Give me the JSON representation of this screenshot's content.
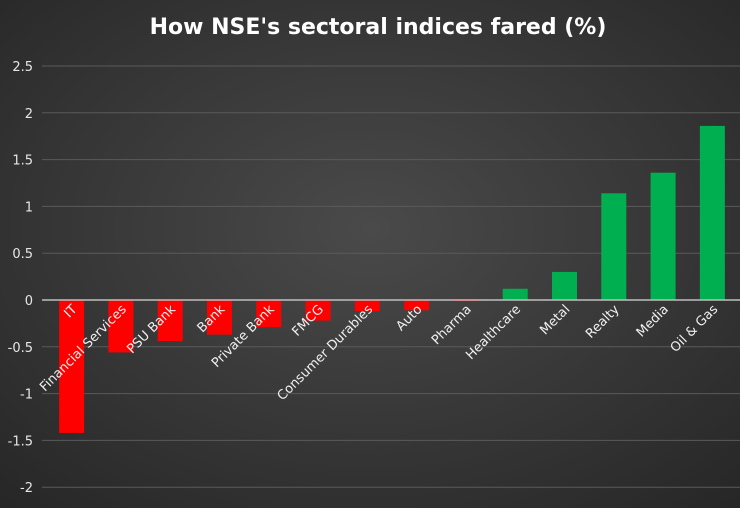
{
  "chart_data": {
    "type": "bar",
    "title": "How NSE's sectoral indices fared (%)",
    "xlabel": "",
    "ylabel": "",
    "ylim": [
      -2,
      2.5
    ],
    "yticks": [
      -2,
      -1.5,
      -1,
      -0.5,
      0,
      0.5,
      1,
      1.5,
      2,
      2.5
    ],
    "ytick_labels": [
      "-2",
      "-1.5",
      "-1",
      "-0.5",
      "0",
      "0.5",
      "1",
      "1.5",
      "2",
      "2.5"
    ],
    "grid": true,
    "legend": "none",
    "categories": [
      "IT",
      "Financial Services",
      "PSU Bank",
      "Bank",
      "Private Bank",
      "FMCG",
      "Consumer Durables",
      "Auto",
      "Pharma",
      "Healthcare",
      "Metal",
      "Realty",
      "Media",
      "Oil & Gas"
    ],
    "values": [
      -1.42,
      -0.56,
      -0.44,
      -0.37,
      -0.29,
      -0.22,
      -0.12,
      -0.11,
      -0.01,
      0.12,
      0.3,
      1.14,
      1.36,
      1.86
    ],
    "colors": {
      "negative": "#ff0000",
      "positive": "#00b050",
      "background": "#3a3a3a",
      "text": "#ffffff",
      "grid": "#5a5a5a",
      "axis": "#bfbfbf"
    }
  }
}
